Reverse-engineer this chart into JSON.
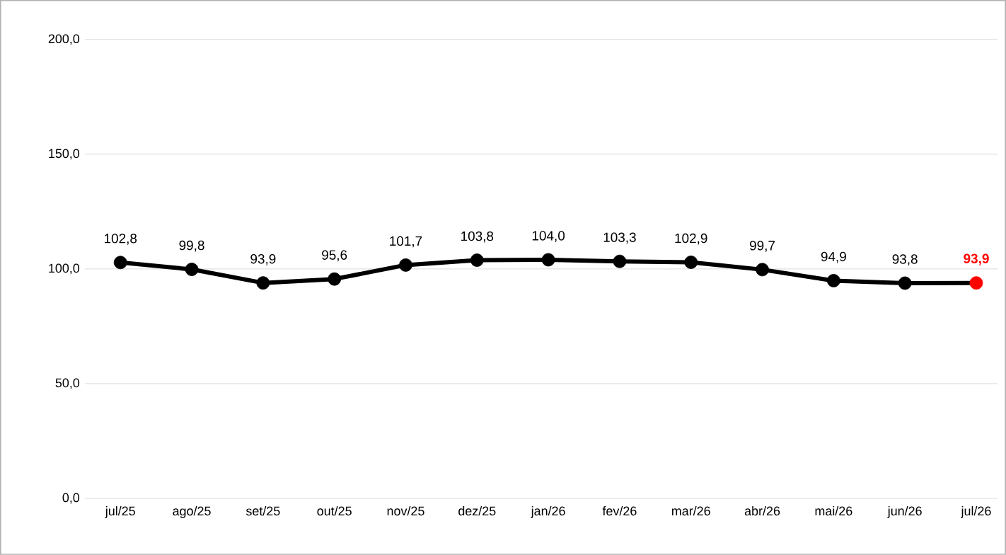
{
  "chart_data": {
    "type": "line",
    "categories": [
      "jul/25",
      "ago/25",
      "set/25",
      "out/25",
      "nov/25",
      "dez/25",
      "jan/26",
      "fev/26",
      "mar/26",
      "abr/26",
      "mai/26",
      "jun/26",
      "jul/26"
    ],
    "series": [
      {
        "color": "#000000",
        "values": [
          102.8,
          99.8,
          93.9,
          95.6,
          101.7,
          103.8,
          104.0,
          103.3,
          102.9,
          99.7,
          94.9,
          93.8,
          93.9
        ],
        "colors": [
          "#000000",
          "#000000",
          "#000000",
          "#000000",
          "#000000",
          "#000000",
          "#000000",
          "#000000",
          "#000000",
          "#000000",
          "#000000",
          "#000000",
          "#ff0000"
        ],
        "value_labels": [
          "102,8",
          "99,8",
          "93,9",
          "95,6",
          "101,7",
          "103,8",
          "104,0",
          "103,3",
          "102,9",
          "99,7",
          "94,9",
          "93,8",
          "93,9"
        ]
      }
    ],
    "ylim": [
      0,
      200
    ],
    "yticks": [
      {
        "value": 0,
        "label": "0,0"
      },
      {
        "value": 50,
        "label": "50,0"
      },
      {
        "value": 100,
        "label": "100,0"
      },
      {
        "value": 150,
        "label": "150,0"
      },
      {
        "value": 200,
        "label": "200,0"
      }
    ],
    "grid": "y",
    "marker": "circle",
    "line_style": "solid"
  }
}
